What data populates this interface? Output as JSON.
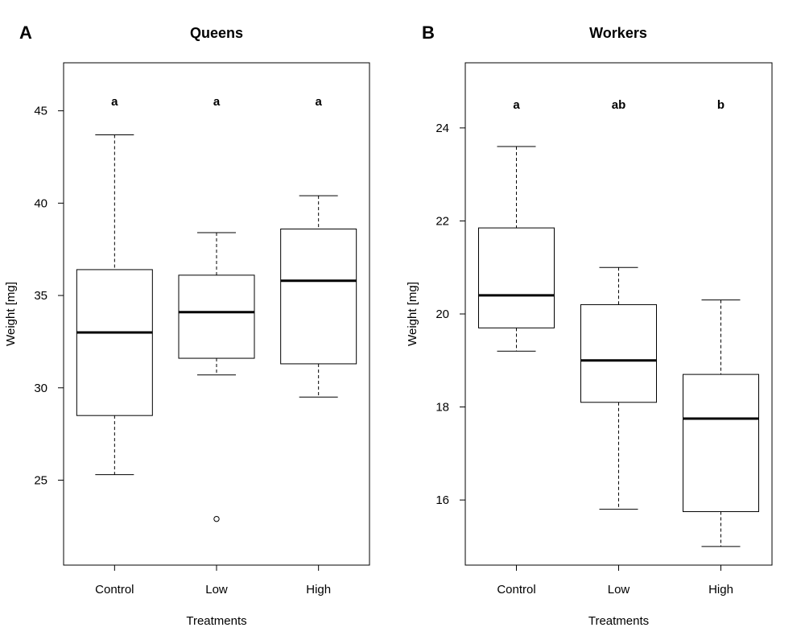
{
  "chart_data": [
    {
      "type": "box",
      "panel_label": "A",
      "title": "Queens",
      "xlabel": "Treatments",
      "ylabel": "Weight [mg]",
      "ylim": [
        20.4,
        47.6
      ],
      "yticks": [
        25,
        30,
        35,
        40,
        45
      ],
      "categories": [
        "Control",
        "Low",
        "High"
      ],
      "boxes": [
        {
          "min": 25.3,
          "q1": 28.5,
          "median": 33.0,
          "q3": 36.4,
          "max": 43.7,
          "outliers": []
        },
        {
          "min": 30.7,
          "q1": 31.6,
          "median": 34.1,
          "q3": 36.1,
          "max": 38.4,
          "outliers": [
            22.9
          ]
        },
        {
          "min": 29.5,
          "q1": 31.3,
          "median": 35.8,
          "q3": 38.6,
          "max": 40.4,
          "outliers": []
        }
      ],
      "significance_letters": [
        "a",
        "a",
        "a"
      ],
      "significance_y": 45.5
    },
    {
      "type": "box",
      "panel_label": "B",
      "title": "Workers",
      "xlabel": "Treatments",
      "ylabel": "Weight [mg]",
      "ylim": [
        14.6,
        25.4
      ],
      "yticks": [
        16,
        18,
        20,
        22,
        24
      ],
      "categories": [
        "Control",
        "Low",
        "High"
      ],
      "boxes": [
        {
          "min": 19.2,
          "q1": 19.7,
          "median": 20.4,
          "q3": 21.85,
          "max": 23.6,
          "outliers": []
        },
        {
          "min": 15.8,
          "q1": 18.1,
          "median": 19.0,
          "q3": 20.2,
          "max": 21.0,
          "outliers": []
        },
        {
          "min": 15.0,
          "q1": 15.75,
          "median": 17.75,
          "q3": 18.7,
          "max": 20.3,
          "outliers": []
        }
      ],
      "significance_letters": [
        "a",
        "ab",
        "b"
      ],
      "significance_y": 24.5
    }
  ]
}
